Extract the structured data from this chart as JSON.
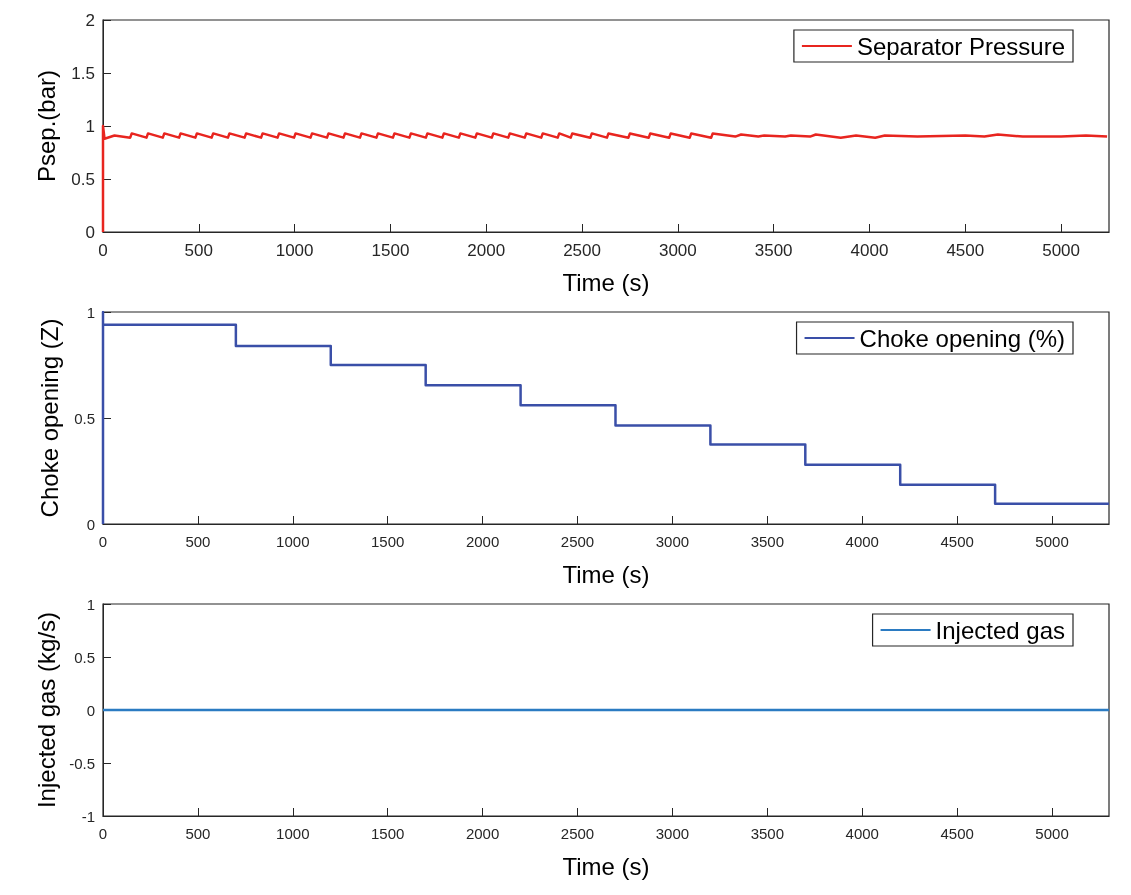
{
  "chart_data": [
    {
      "type": "line",
      "xlabel": "Time (s)",
      "ylabel": "Psep.(bar)",
      "xlim": [
        0,
        5250
      ],
      "xticks": [
        0,
        500,
        1000,
        1500,
        2000,
        2500,
        3000,
        3500,
        4000,
        4500,
        5000
      ],
      "ylim": [
        0,
        2
      ],
      "yticks": [
        0,
        0.5,
        1,
        1.5,
        2
      ],
      "grid": false,
      "legend": "top right",
      "line_style": "solid",
      "series": [
        {
          "name": "Separator Pressure",
          "color": "#e8251f",
          "x": [
            0,
            0,
            8,
            60,
            142,
            150,
            227,
            235,
            312,
            320,
            397,
            405,
            482,
            490,
            567,
            575,
            652,
            660,
            739,
            747,
            825,
            833,
            911,
            919,
            997,
            1005,
            1083,
            1091,
            1169,
            1177,
            1255,
            1263,
            1341,
            1349,
            1427,
            1435,
            1513,
            1521,
            1599,
            1607,
            1685,
            1693,
            1771,
            1779,
            1857,
            1865,
            1943,
            1951,
            2029,
            2037,
            2115,
            2123,
            2201,
            2209,
            2287,
            2295,
            2373,
            2381,
            2441,
            2449,
            2543,
            2551,
            2630,
            2638,
            2742,
            2750,
            2848,
            2856,
            2955,
            2963,
            3062,
            3070,
            3174,
            3182,
            3300,
            3330,
            3420,
            3450,
            3560,
            3590,
            3690,
            3720,
            3850,
            3930,
            4030,
            4080,
            4250,
            4500,
            4600,
            4670,
            4800,
            5000,
            5130,
            5240
          ],
          "values": [
            0,
            1,
            0.88,
            0.91,
            0.89,
            0.93,
            0.89,
            0.93,
            0.89,
            0.93,
            0.89,
            0.93,
            0.89,
            0.93,
            0.89,
            0.93,
            0.89,
            0.93,
            0.89,
            0.93,
            0.89,
            0.93,
            0.89,
            0.93,
            0.89,
            0.93,
            0.89,
            0.93,
            0.89,
            0.93,
            0.89,
            0.93,
            0.89,
            0.93,
            0.89,
            0.93,
            0.89,
            0.93,
            0.89,
            0.93,
            0.89,
            0.93,
            0.89,
            0.93,
            0.89,
            0.93,
            0.89,
            0.93,
            0.89,
            0.93,
            0.89,
            0.93,
            0.89,
            0.93,
            0.89,
            0.93,
            0.89,
            0.93,
            0.89,
            0.93,
            0.89,
            0.93,
            0.89,
            0.93,
            0.89,
            0.93,
            0.89,
            0.93,
            0.89,
            0.93,
            0.89,
            0.93,
            0.89,
            0.93,
            0.9,
            0.92,
            0.9,
            0.91,
            0.9,
            0.91,
            0.9,
            0.92,
            0.89,
            0.91,
            0.89,
            0.91,
            0.9,
            0.91,
            0.9,
            0.92,
            0.9,
            0.9,
            0.91,
            0.9
          ]
        }
      ]
    },
    {
      "type": "step",
      "xlabel": "Time (s)",
      "ylabel": "Choke opening (Z)",
      "xlim": [
        0,
        5300
      ],
      "xticks": [
        0,
        500,
        1000,
        1500,
        2000,
        2500,
        3000,
        3500,
        4000,
        4500,
        5000
      ],
      "ylim": [
        0,
        1
      ],
      "yticks": [
        0,
        0.5,
        1
      ],
      "grid": false,
      "legend": "top right",
      "line_style": "solid",
      "series": [
        {
          "name": "Choke opening (%)",
          "color": "#3a4fa8",
          "x": [
            0,
            0,
            0,
            700,
            1200,
            1700,
            2200,
            2700,
            3200,
            3700,
            4200,
            4700,
            5300
          ],
          "values": [
            0,
            1,
            0.94,
            0.84,
            0.75,
            0.655,
            0.56,
            0.465,
            0.375,
            0.28,
            0.185,
            0.095,
            0.095
          ]
        }
      ]
    },
    {
      "type": "line",
      "xlabel": "Time (s)",
      "ylabel": "Injected gas (kg/s)",
      "xlim": [
        0,
        5300
      ],
      "xticks": [
        0,
        500,
        1000,
        1500,
        2000,
        2500,
        3000,
        3500,
        4000,
        4500,
        5000
      ],
      "ylim": [
        -1,
        1
      ],
      "yticks": [
        -1,
        -0.5,
        0,
        0.5,
        1
      ],
      "grid": false,
      "legend": "top right",
      "line_style": "solid",
      "series": [
        {
          "name": "Injected gas",
          "color": "#2b7bc2",
          "x": [
            0,
            5300
          ],
          "values": [
            0,
            0
          ]
        }
      ]
    }
  ]
}
